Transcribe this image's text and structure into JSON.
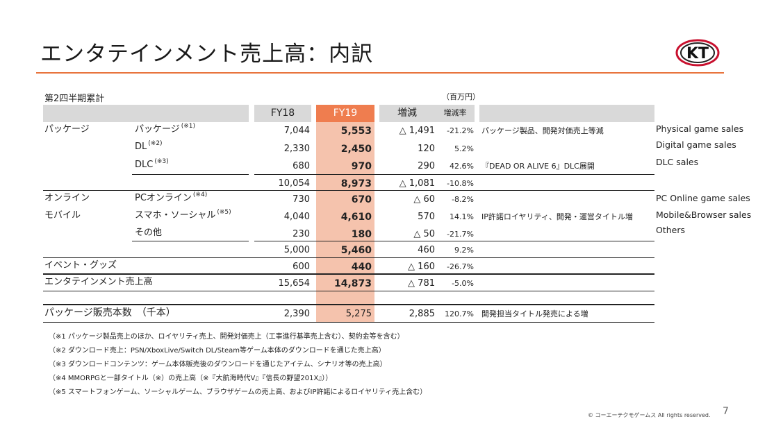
{
  "title": "エンタテインメント売上高：内訳",
  "logo_text": "KT",
  "section_label": "第2四半期累計",
  "unit_label": "（百万円）",
  "headers": {
    "fy18": "FY18",
    "fy19": "FY19",
    "change": "増減",
    "rate": "増減率"
  },
  "rows": {
    "package_group": "パッケージ",
    "package": {
      "label": "パッケージ",
      "sup": "(※1)",
      "fy18": "7,044",
      "fy19": "5,553",
      "change": "△ 1,491",
      "rate": "-21.2%",
      "note": "パッケージ製品、開発対価売上等減"
    },
    "dl": {
      "label": "DL",
      "sup": "(※2)",
      "fy18": "2,330",
      "fy19": "2,450",
      "change": "120",
      "rate": "5.2%",
      "note": ""
    },
    "dlc": {
      "label": "DLC",
      "sup": "(※3)",
      "fy18": "680",
      "fy19": "970",
      "change": "290",
      "rate": "42.6%",
      "note": "『DEAD OR ALIVE 6』DLC展開"
    },
    "package_subtotal": {
      "fy18": "10,054",
      "fy19": "8,973",
      "change": "△ 1,081",
      "rate": "-10.8%"
    },
    "online_group_1": "オンライン",
    "online_group_2": "モバイル",
    "pc_online": {
      "label": "PCオンライン",
      "sup": "(※4)",
      "fy18": "730",
      "fy19": "670",
      "change": "△ 60",
      "rate": "-8.2%",
      "note": ""
    },
    "smartphone": {
      "label": "スマホ・ソーシャル",
      "sup": "(※5)",
      "fy18": "4,040",
      "fy19": "4,610",
      "change": "570",
      "rate": "14.1%",
      "note": "IP許諾ロイヤリティ、開発・運営タイトル増"
    },
    "others": {
      "label": "その他",
      "fy18": "230",
      "fy19": "180",
      "change": "△ 50",
      "rate": "-21.7%",
      "note": ""
    },
    "online_subtotal": {
      "fy18": "5,000",
      "fy19": "5,460",
      "change": "460",
      "rate": "9.2%"
    },
    "events": {
      "label": "イベント・グッズ",
      "fy18": "600",
      "fy19": "440",
      "change": "△ 160",
      "rate": "-26.7%"
    },
    "total": {
      "label": "エンタテインメント売上高",
      "fy18": "15,654",
      "fy19": "14,873",
      "change": "△ 781",
      "rate": "-5.0%"
    },
    "units": {
      "label": "パッケージ販売本数　（千本）",
      "fy18": "2,390",
      "fy19": "5,275",
      "change": "2,885",
      "rate": "120.7%",
      "note": "開発担当タイトル発売による増"
    }
  },
  "english_labels": {
    "physical": "Physical game sales",
    "digital": "Digital game sales",
    "dlc": "DLC sales",
    "pc_online": "PC Online game sales",
    "mobile": "Mobile&Browser sales",
    "others": "Others"
  },
  "footnotes": [
    "（※1 パッケージ製品売上のほか、ロイヤリティ売上、開発対価売上（工事進行基準売上含む）、契約金等を含む）",
    "（※2 ダウンロード売上：PSN/XboxLive/Switch DL/Steam等ゲーム本体のダウンロードを通じた売上高）",
    "（※3 ダウンロードコンテンツ：ゲーム本体販売後のダウンロードを通じたアイテム、シナリオ等の売上高）",
    "（※4 MMORPGと一部タイトル（※）の売上高（※『大航海時代Ⅴ』『信長の野望201X』））",
    "（※5 スマートフォンゲーム、ソーシャルゲーム、ブラウザゲームの売上高、およびIP許諾によるロイヤリティ売上含む）"
  ],
  "copyright": "© コーエーテクモゲームス All rights reserved.",
  "page_number": "7",
  "colors": {
    "accent": "#e8733c",
    "fy19_header": "#ef7d4f",
    "fy19_column": "#f5c3ad",
    "header_bg": "#d9d9d9"
  }
}
